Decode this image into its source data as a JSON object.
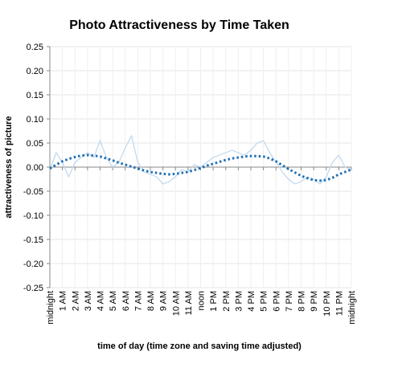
{
  "chart_data": {
    "type": "line",
    "title": "Photo Attractiveness by Time Taken",
    "xlabel": "time of day (time zone and saving time adjusted)",
    "ylabel": "attractiveness of picture",
    "x": [
      0,
      0.5,
      1,
      1.5,
      2,
      2.5,
      3,
      3.5,
      4,
      4.5,
      5,
      5.5,
      6,
      6.5,
      7,
      7.5,
      8,
      8.5,
      9,
      9.5,
      10,
      10.5,
      11,
      11.5,
      12,
      12.5,
      13,
      13.5,
      14,
      14.5,
      15,
      15.5,
      16,
      16.5,
      17,
      17.5,
      18,
      18.5,
      19,
      19.5,
      20,
      20.5,
      21,
      21.5,
      22,
      22.5,
      23,
      23.5,
      24
    ],
    "series": [
      {
        "color": "#bdd7ee",
        "style": "solid",
        "values": [
          -0.005,
          0.03,
          0.01,
          -0.02,
          0.01,
          0.02,
          0.03,
          0.02,
          0.055,
          0.02,
          0.0,
          0.01,
          0.04,
          0.065,
          0.01,
          -0.01,
          -0.015,
          -0.02,
          -0.035,
          -0.03,
          -0.02,
          -0.005,
          -0.01,
          0.005,
          0.0,
          0.01,
          0.02,
          0.025,
          0.03,
          0.035,
          0.03,
          0.025,
          0.035,
          0.05,
          0.055,
          0.03,
          0.01,
          -0.01,
          -0.025,
          -0.035,
          -0.03,
          -0.02,
          -0.025,
          -0.035,
          -0.02,
          0.01,
          0.025,
          0.0,
          -0.005
        ]
      },
      {
        "color": "#1f6fb5",
        "style": "dotted",
        "values": [
          -0.003,
          0.005,
          0.012,
          0.017,
          0.021,
          0.024,
          0.025,
          0.024,
          0.022,
          0.018,
          0.014,
          0.009,
          0.005,
          0.001,
          -0.003,
          -0.007,
          -0.01,
          -0.012,
          -0.014,
          -0.015,
          -0.014,
          -0.012,
          -0.01,
          -0.006,
          -0.002,
          0.003,
          0.007,
          0.011,
          0.015,
          0.018,
          0.02,
          0.022,
          0.023,
          0.023,
          0.022,
          0.018,
          0.012,
          0.004,
          -0.004,
          -0.011,
          -0.018,
          -0.023,
          -0.027,
          -0.028,
          -0.027,
          -0.022,
          -0.015,
          -0.01,
          -0.005
        ]
      }
    ],
    "xlim": [
      0,
      24
    ],
    "xticks": [
      {
        "value": 0,
        "label": "midnight"
      },
      {
        "value": 1,
        "label": "1 AM"
      },
      {
        "value": 2,
        "label": "2 AM"
      },
      {
        "value": 3,
        "label": "3 AM"
      },
      {
        "value": 4,
        "label": "4 AM"
      },
      {
        "value": 5,
        "label": "5 AM"
      },
      {
        "value": 6,
        "label": "6 AM"
      },
      {
        "value": 7,
        "label": "7 AM"
      },
      {
        "value": 8,
        "label": "8 AM"
      },
      {
        "value": 9,
        "label": "9 AM"
      },
      {
        "value": 10,
        "label": "10 AM"
      },
      {
        "value": 11,
        "label": "11 AM"
      },
      {
        "value": 12,
        "label": "noon"
      },
      {
        "value": 13,
        "label": "1 PM"
      },
      {
        "value": 14,
        "label": "2 PM"
      },
      {
        "value": 15,
        "label": "3 PM"
      },
      {
        "value": 16,
        "label": "4 PM"
      },
      {
        "value": 17,
        "label": "5 PM"
      },
      {
        "value": 18,
        "label": "6 PM"
      },
      {
        "value": 19,
        "label": "7 PM"
      },
      {
        "value": 20,
        "label": "8 PM"
      },
      {
        "value": 21,
        "label": "9 PM"
      },
      {
        "value": 22,
        "label": "10 PM"
      },
      {
        "value": 23,
        "label": "11 PM"
      },
      {
        "value": 24,
        "label": "midnight"
      }
    ],
    "ylim": [
      -0.25,
      0.25
    ],
    "yticks": [
      0.25,
      {
        "value": 0.2,
        "label": "0.20"
      },
      0.15,
      {
        "value": 0.1,
        "label": "0.10"
      },
      0.05,
      {
        "value": 0,
        "label": "0.00"
      },
      -0.05,
      {
        "value": -0.1,
        "label": "-0.10"
      },
      -0.15,
      {
        "value": -0.2,
        "label": "-0.20"
      },
      -0.25
    ],
    "grid": true
  }
}
